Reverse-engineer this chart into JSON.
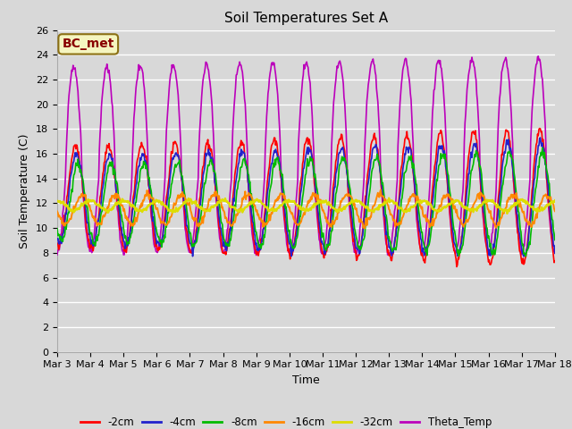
{
  "title": "Soil Temperatures Set A",
  "xlabel": "Time",
  "ylabel": "Soil Temperature (C)",
  "ylim": [
    0,
    26
  ],
  "annotation": "BC_met",
  "colors": {
    "-2cm": "#ff0000",
    "-4cm": "#2222cc",
    "-8cm": "#00bb00",
    "-16cm": "#ff8800",
    "-32cm": "#dddd00",
    "Theta_Temp": "#bb00bb"
  },
  "legend_labels": [
    "-2cm",
    "-4cm",
    "-8cm",
    "-16cm",
    "-32cm",
    "Theta_Temp"
  ],
  "x_tick_labels": [
    "Mar 3",
    "Mar 4",
    "Mar 5",
    "Mar 6",
    "Mar 7",
    "Mar 8",
    "Mar 9",
    "Mar 10",
    "Mar 11",
    "Mar 12",
    "Mar 13",
    "Mar 14",
    "Mar 15",
    "Mar 16",
    "Mar 17",
    "Mar 18"
  ],
  "background_color": "#d8d8d8",
  "grid_color": "#ffffff",
  "ann_facecolor": "#f5f5c0",
  "ann_edgecolor": "#8B7014",
  "ann_textcolor": "#880000",
  "linewidth": 1.2,
  "title_fontsize": 11,
  "tick_fontsize": 8,
  "label_fontsize": 9
}
